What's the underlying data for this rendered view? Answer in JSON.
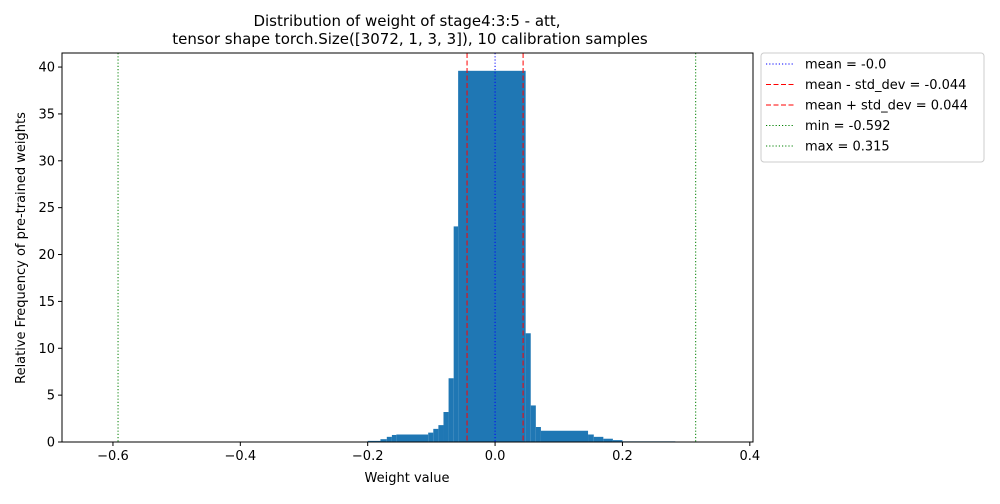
{
  "chart_data": {
    "type": "bar",
    "title_line1": "Distribution of weight of stage4:3:5 - att,",
    "title_line2": "tensor shape torch.Size([3072, 1, 3, 3]), 10 calibration samples",
    "xlabel": "Weight value",
    "ylabel": "Relative Frequency of pre-trained weights",
    "xlim": [
      -0.68,
      0.405
    ],
    "ylim": [
      0,
      41.5
    ],
    "x_ticks": [
      -0.6,
      -0.4,
      -0.2,
      0.0,
      0.2,
      0.4
    ],
    "x_tick_labels": [
      "−0.6",
      "−0.4",
      "−0.2",
      "0.0",
      "0.2",
      "0.4"
    ],
    "y_ticks": [
      0,
      5,
      10,
      15,
      20,
      25,
      30,
      35,
      40
    ],
    "y_tick_labels": [
      "0",
      "5",
      "10",
      "15",
      "20",
      "25",
      "30",
      "35",
      "40"
    ],
    "bar_color": "#1f77b4",
    "bins": [
      {
        "x0": -0.317,
        "x1": -0.2,
        "value": 0.05
      },
      {
        "x0": -0.2,
        "x1": -0.18,
        "value": 0.12
      },
      {
        "x0": -0.18,
        "x1": -0.17,
        "value": 0.3
      },
      {
        "x0": -0.17,
        "x1": -0.162,
        "value": 0.55
      },
      {
        "x0": -0.162,
        "x1": -0.155,
        "value": 0.75
      },
      {
        "x0": -0.155,
        "x1": -0.105,
        "value": 0.8
      },
      {
        "x0": -0.105,
        "x1": -0.097,
        "value": 1.0
      },
      {
        "x0": -0.097,
        "x1": -0.089,
        "value": 1.4
      },
      {
        "x0": -0.089,
        "x1": -0.081,
        "value": 1.8
      },
      {
        "x0": -0.081,
        "x1": -0.073,
        "value": 3.2
      },
      {
        "x0": -0.073,
        "x1": -0.065,
        "value": 6.8
      },
      {
        "x0": -0.065,
        "x1": -0.058,
        "value": 23.0
      },
      {
        "x0": -0.058,
        "x1": 0.048,
        "value": 39.6
      },
      {
        "x0": 0.048,
        "x1": 0.056,
        "value": 11.6
      },
      {
        "x0": 0.056,
        "x1": 0.064,
        "value": 3.9
      },
      {
        "x0": 0.064,
        "x1": 0.072,
        "value": 1.6
      },
      {
        "x0": 0.072,
        "x1": 0.146,
        "value": 1.2
      },
      {
        "x0": 0.146,
        "x1": 0.155,
        "value": 0.8
      },
      {
        "x0": 0.155,
        "x1": 0.17,
        "value": 0.55
      },
      {
        "x0": 0.17,
        "x1": 0.185,
        "value": 0.35
      },
      {
        "x0": 0.185,
        "x1": 0.2,
        "value": 0.2
      },
      {
        "x0": 0.2,
        "x1": 0.283,
        "value": 0.07
      }
    ],
    "lines": [
      {
        "label": "mean = -0.0",
        "x": 0.0,
        "color": "#0000ff",
        "style": "dotted"
      },
      {
        "label": "mean - std_dev = -0.044",
        "x": -0.044,
        "color": "#ff0000",
        "style": "dashed"
      },
      {
        "label": "mean + std_dev = 0.044",
        "x": 0.044,
        "color": "#ff0000",
        "style": "dashed"
      },
      {
        "label": "min = -0.592",
        "x": -0.592,
        "color": "#008000",
        "style": "dotted"
      },
      {
        "label": "max = 0.315",
        "x": 0.315,
        "color": "#008000",
        "style": "dotted"
      }
    ],
    "legend_position": "outside-right-top",
    "grid": false
  }
}
